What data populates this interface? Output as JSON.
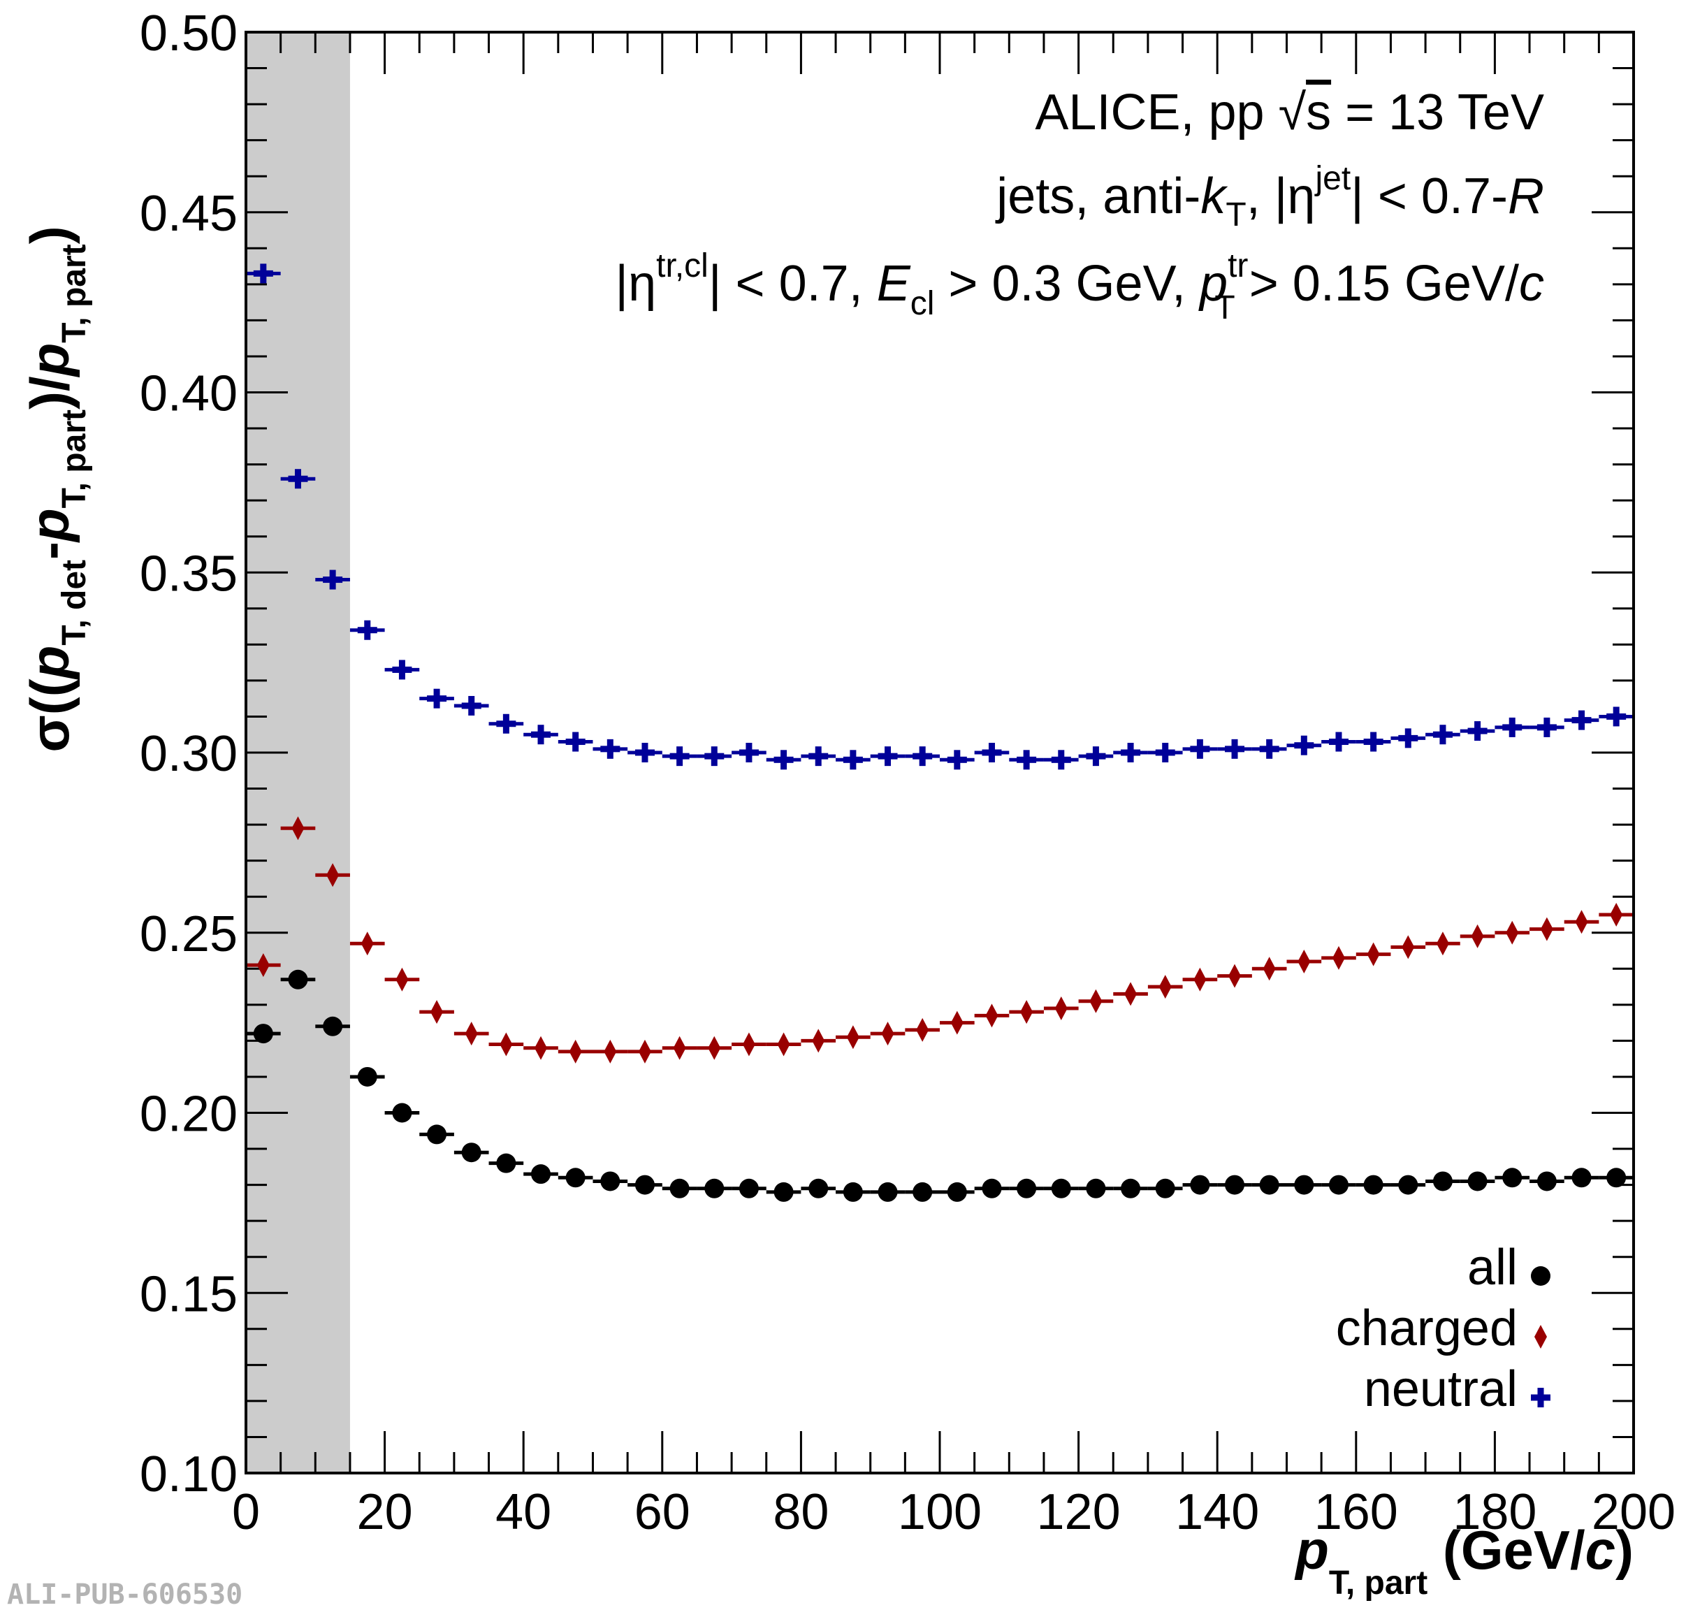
{
  "chart_data": {
    "type": "scatter",
    "xlim": [
      0,
      200
    ],
    "ylim": [
      0.1,
      0.5
    ],
    "x_ticks": [
      "0",
      "20",
      "40",
      "60",
      "80",
      "100",
      "120",
      "140",
      "160",
      "180",
      "200"
    ],
    "y_ticks": [
      "0.10",
      "0.15",
      "0.20",
      "0.25",
      "0.30",
      "0.35",
      "0.40",
      "0.45",
      "0.50"
    ],
    "shaded_band": {
      "x_from": 0,
      "x_to": 15,
      "color": "#cccccc"
    },
    "x": [
      2.5,
      7.5,
      12.5,
      17.5,
      22.5,
      27.5,
      32.5,
      37.5,
      42.5,
      47.5,
      52.5,
      57.5,
      62.5,
      67.5,
      72.5,
      77.5,
      82.5,
      87.5,
      92.5,
      97.5,
      102.5,
      107.5,
      112.5,
      117.5,
      122.5,
      127.5,
      132.5,
      137.5,
      142.5,
      147.5,
      152.5,
      157.5,
      162.5,
      167.5,
      172.5,
      177.5,
      182.5,
      187.5,
      192.5,
      197.5
    ],
    "x_bin_halfwidth": 2.5,
    "series": [
      {
        "name": "all",
        "marker": "circle",
        "color": "#000000",
        "values": [
          0.222,
          0.237,
          0.224,
          0.21,
          0.2,
          0.194,
          0.189,
          0.186,
          0.183,
          0.182,
          0.181,
          0.18,
          0.179,
          0.179,
          0.179,
          0.178,
          0.179,
          0.178,
          0.178,
          0.178,
          0.178,
          0.179,
          0.179,
          0.179,
          0.179,
          0.179,
          0.179,
          0.18,
          0.18,
          0.18,
          0.18,
          0.18,
          0.18,
          0.18,
          0.181,
          0.181,
          0.182,
          0.181,
          0.182,
          0.182
        ]
      },
      {
        "name": "charged",
        "marker": "diamond",
        "color": "#990000",
        "values": [
          0.241,
          0.279,
          0.266,
          0.247,
          0.237,
          0.228,
          0.222,
          0.219,
          0.218,
          0.217,
          0.217,
          0.217,
          0.218,
          0.218,
          0.219,
          0.219,
          0.22,
          0.221,
          0.222,
          0.223,
          0.225,
          0.227,
          0.228,
          0.229,
          0.231,
          0.233,
          0.235,
          0.237,
          0.238,
          0.24,
          0.242,
          0.243,
          0.244,
          0.246,
          0.247,
          0.249,
          0.25,
          0.251,
          0.253,
          0.255
        ]
      },
      {
        "name": "neutral",
        "marker": "cross",
        "color": "#000099",
        "values": [
          0.433,
          0.376,
          0.348,
          0.334,
          0.323,
          0.315,
          0.313,
          0.308,
          0.305,
          0.303,
          0.301,
          0.3,
          0.299,
          0.299,
          0.3,
          0.298,
          0.299,
          0.298,
          0.299,
          0.299,
          0.298,
          0.3,
          0.298,
          0.298,
          0.299,
          0.3,
          0.3,
          0.301,
          0.301,
          0.301,
          0.302,
          0.303,
          0.303,
          0.304,
          0.305,
          0.306,
          0.307,
          0.307,
          0.309,
          0.31
        ]
      }
    ]
  },
  "annotations": {
    "line1": {
      "a": "ALICE, pp ",
      "root": "√",
      "s": "s",
      "b": " = 13 TeV"
    },
    "line2": {
      "a": "jets, anti-",
      "k": "k",
      "T": "T",
      "b": ", |η",
      "jet": "jet",
      "c": "| < 0.7-",
      "R": "R"
    },
    "line3": {
      "a": "|η",
      "trcl": "tr,cl",
      "b": "| < 0.7, ",
      "E": "E",
      "cl": "cl",
      "c": " > 0.3 GeV, ",
      "p": "p",
      "tr": "tr",
      "T": "T",
      "d": " > 0.15 GeV/",
      "cc": "c"
    }
  },
  "y_title": {
    "a": "σ((",
    "p1": "p",
    "s1": "T, det",
    "b": "-",
    "p2": "p",
    "s2": "T, part",
    "c": ")/",
    "p3": "p",
    "s3": "T, part",
    "d": ")"
  },
  "x_title": {
    "p": "p",
    "sub": "T, part",
    "a": " (GeV/",
    "c": "c",
    "b": ")"
  },
  "legend": [
    {
      "label": "all"
    },
    {
      "label": "charged"
    },
    {
      "label": "neutral"
    }
  ],
  "watermark": "ALI-PUB-606530"
}
